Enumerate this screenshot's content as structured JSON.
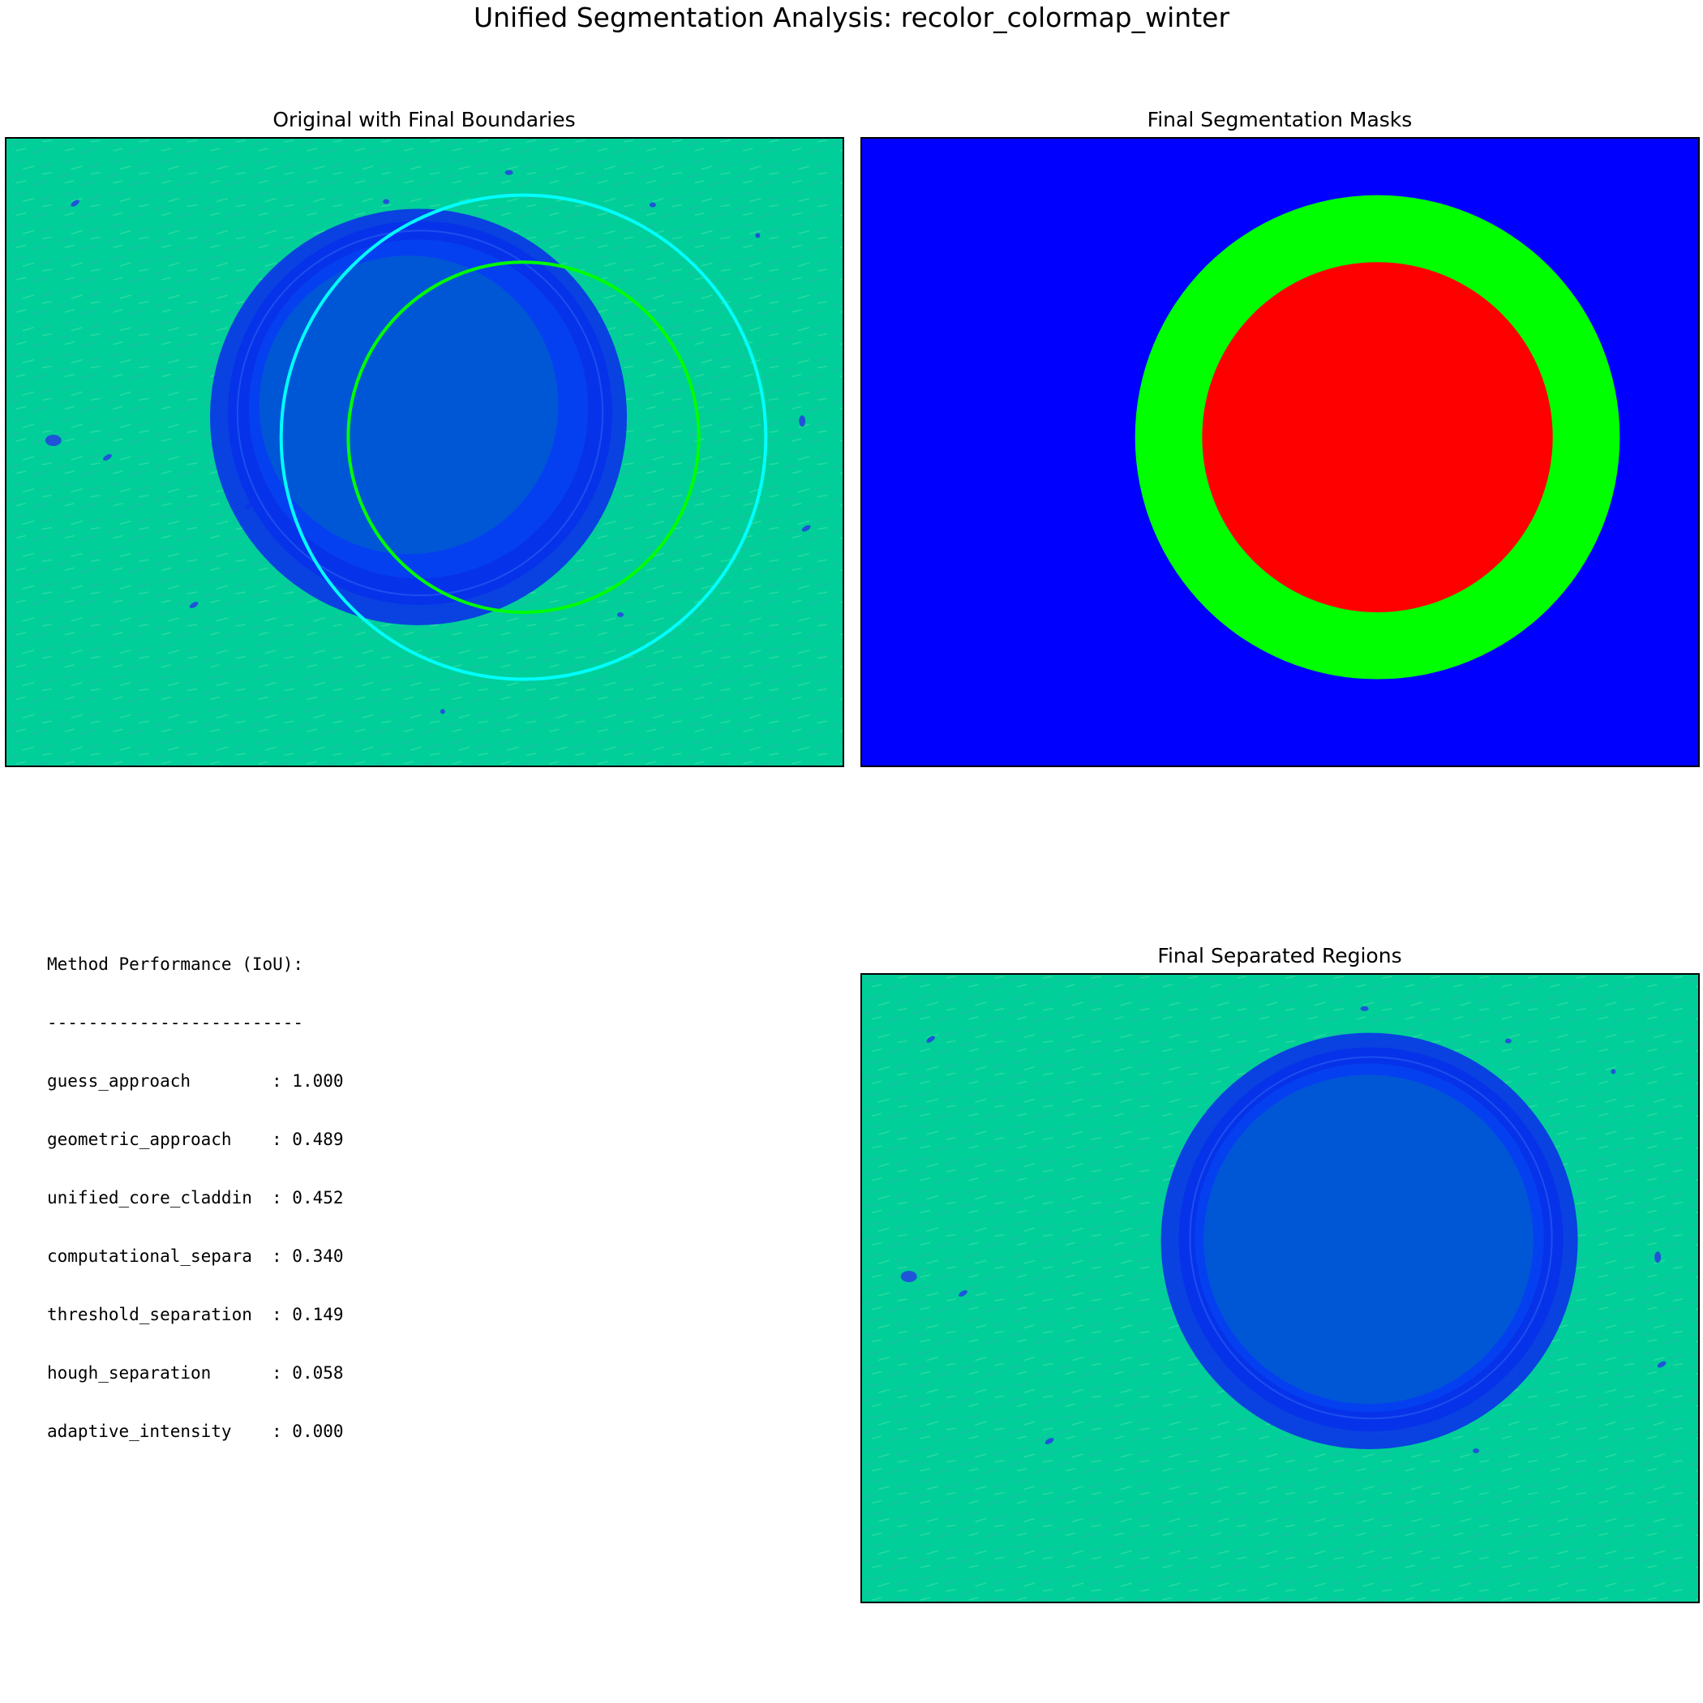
{
  "figure": {
    "title": "Unified Segmentation Analysis: recolor_colormap_winter"
  },
  "panels": {
    "original": {
      "title": "Original with Final Boundaries"
    },
    "masks": {
      "title": "Final Segmentation Masks"
    },
    "separated": {
      "title": "Final Separated Regions"
    }
  },
  "colors": {
    "background_teal": "#00cf9a",
    "fiber_ring_blue": "#0a32e8",
    "core_blue": "#0057d6",
    "boundary_cladding": "#00ffff",
    "boundary_core": "#00ff00",
    "mask_background": "#0000ff",
    "mask_cladding": "#00ff00",
    "mask_core": "#ff0000"
  },
  "performance": {
    "heading": "Method Performance (IoU):",
    "divider": "-------------------------",
    "rows": [
      {
        "method": "guess_approach",
        "score": "1.000"
      },
      {
        "method": "geometric_approach",
        "score": "0.489"
      },
      {
        "method": "unified_core_claddin",
        "score": "0.452"
      },
      {
        "method": "computational_separa",
        "score": "0.340"
      },
      {
        "method": "threshold_separation",
        "score": "0.149"
      },
      {
        "method": "hough_separation",
        "score": "0.058"
      },
      {
        "method": "adaptive_intensity",
        "score": "0.000"
      }
    ]
  }
}
